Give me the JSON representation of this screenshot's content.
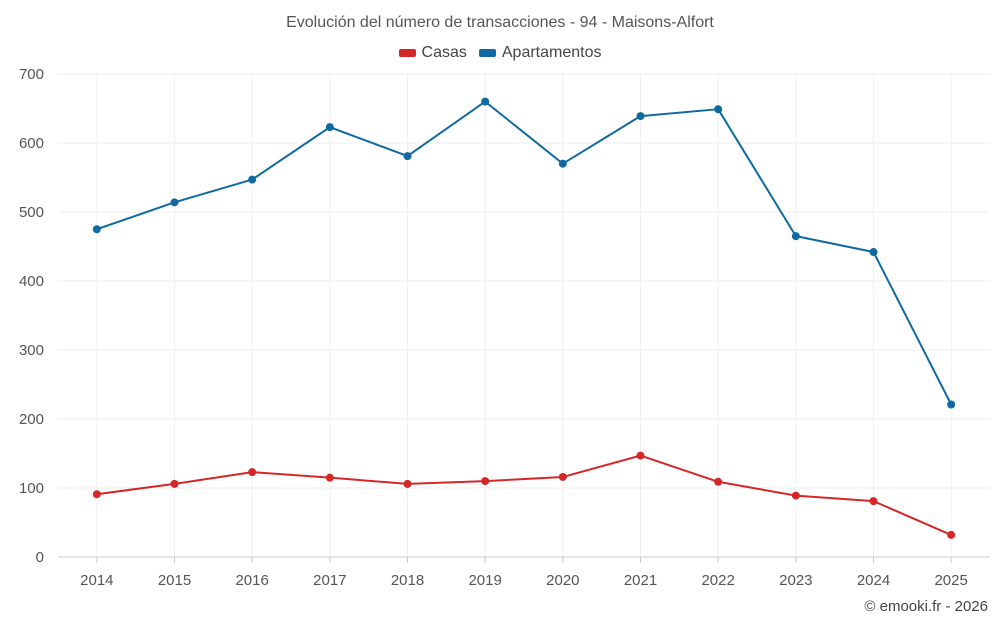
{
  "chart_data": {
    "type": "line",
    "title": "Evolución del número de transacciones - 94 - Maisons-Alfort",
    "categories": [
      "2014",
      "2015",
      "2016",
      "2017",
      "2018",
      "2019",
      "2020",
      "2021",
      "2022",
      "2023",
      "2024",
      "2025"
    ],
    "series": [
      {
        "name": "Casas",
        "color": "#d62728",
        "values": [
          91,
          106,
          123,
          115,
          106,
          110,
          116,
          147,
          109,
          89,
          81,
          32
        ]
      },
      {
        "name": "Apartamentos",
        "color": "#0f6aa0",
        "values": [
          475,
          514,
          547,
          623,
          581,
          660,
          570,
          639,
          649,
          465,
          442,
          221
        ]
      }
    ],
    "ylim": [
      0,
      700
    ],
    "yticks": [
      0,
      100,
      200,
      300,
      400,
      500,
      600,
      700
    ],
    "xlabel": "",
    "ylabel": "",
    "grid": true,
    "legend": "top-center"
  },
  "credit": "© emooki.fr - 2026"
}
